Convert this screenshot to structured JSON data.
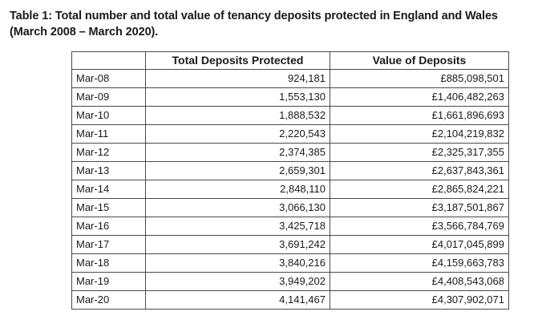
{
  "caption": {
    "line1": "Table 1: Total number and total value of tenancy deposits protected in England and Wales",
    "line2": "(March 2008 – March 2020)."
  },
  "table": {
    "headers": [
      "",
      "Total Deposits Protected",
      "Value of Deposits"
    ],
    "rows": [
      {
        "period": "Mar-08",
        "total": "924,181",
        "value": "£885,098,501"
      },
      {
        "period": "Mar-09",
        "total": "1,553,130",
        "value": "£1,406,482,263"
      },
      {
        "period": "Mar-10",
        "total": "1,888,532",
        "value": "£1,661,896,693"
      },
      {
        "period": "Mar-11",
        "total": "2,220,543",
        "value": "£2,104,219,832"
      },
      {
        "period": "Mar-12",
        "total": "2,374,385",
        "value": "£2,325,317,355"
      },
      {
        "period": "Mar-13",
        "total": "2,659,301",
        "value": "£2,637,843,361"
      },
      {
        "period": "Mar-14",
        "total": "2,848,110",
        "value": "£2,865,824,221"
      },
      {
        "period": "Mar-15",
        "total": "3,066,130",
        "value": "£3,187,501,867"
      },
      {
        "period": "Mar-16",
        "total": "3,425,718",
        "value": "£3,566,784,769"
      },
      {
        "period": "Mar-17",
        "total": "3,691,242",
        "value": "£4,017,045,899"
      },
      {
        "period": "Mar-18",
        "total": "3,840,216",
        "value": "£4,159,663,783"
      },
      {
        "period": "Mar-19",
        "total": "3,949,202",
        "value": "£4,408,543,068"
      },
      {
        "period": "Mar-20",
        "total": "4,141,467",
        "value": "£4,307,902,071"
      }
    ]
  }
}
